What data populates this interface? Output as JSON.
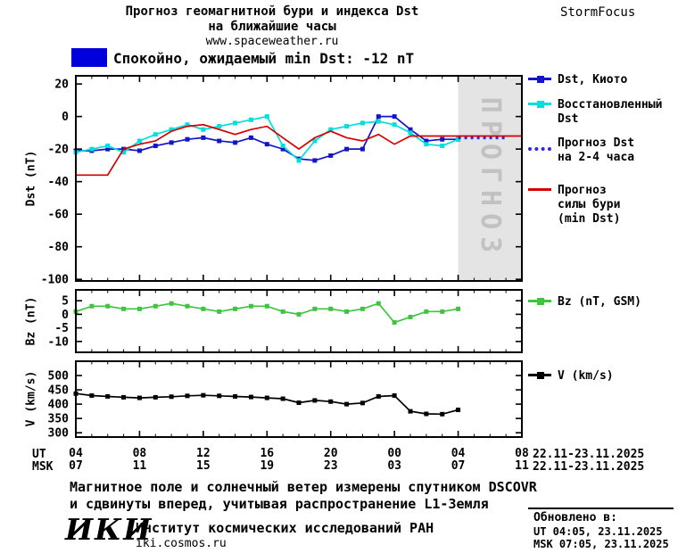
{
  "header": {
    "title_line1": "Прогноз геомагнитной бури и индекса Dst",
    "title_line2": "на ближайшие часы",
    "website": "www.spaceweather.ru",
    "brand": "StormFocus"
  },
  "status": {
    "label": "Спокойно, ожидаемый min Dst: -12 nT",
    "swatch_color": "#0000dd"
  },
  "axis": {
    "ut_row_label": "UT",
    "msk_row_label": "MSK",
    "ut_date": "22.11-23.11.2025",
    "msk_date": "22.11-23.11.2025"
  },
  "footer": {
    "note_line1": "Магнитное поле и солнечный ветер измерены спутником DSCOVR",
    "note_line2": "и сдвинуты вперед, учитывая распространение L1-Земля",
    "updated_label": "Обновлено в:",
    "updated_ut": "UT  04:05, 23.11.2025",
    "updated_msk": "MSK 07:05, 23.11.2025",
    "iki_logo": "ИКИ",
    "institute": "Институт космических исследований РАН",
    "iki_site": "iki.cosmos.ru"
  },
  "chart_data": {
    "type": "line",
    "x_hours": {
      "start": 4,
      "end": 32,
      "ticks": [
        4,
        8,
        12,
        16,
        20,
        24,
        28,
        32
      ]
    },
    "x_tick_labels_ut": [
      "04",
      "08",
      "12",
      "16",
      "20",
      "00",
      "04",
      "08"
    ],
    "x_tick_labels_msk": [
      "07",
      "11",
      "15",
      "19",
      "23",
      "03",
      "07",
      "11"
    ],
    "forecast_region": {
      "start_hour": 28,
      "end_hour": 32,
      "label": "ПРОГНОЗ",
      "fill": "#e4e4e4",
      "label_color": "#c2c2c2"
    },
    "panels": [
      {
        "name": "dst",
        "ylabel": "Dst (nT)",
        "ylim": [
          -101,
          25
        ],
        "yticks": [
          20,
          0,
          -20,
          -40,
          -60,
          -80,
          -100
        ],
        "series": [
          {
            "name": "Dst, Киото",
            "color": "#1414c8",
            "marker": "square",
            "x_start": 4,
            "values": [
              -21,
              -21,
              -20,
              -20,
              -21,
              -18,
              -16,
              -14,
              -13,
              -15,
              -16,
              -13,
              -17,
              -20,
              -26,
              -27,
              -24,
              -20,
              -20,
              0,
              0,
              -8,
              -15,
              -14,
              -14
            ]
          },
          {
            "name": "Восстановленный Dst",
            "color": "#00dede",
            "marker": "square",
            "x_start": 4,
            "values": [
              -22,
              -20,
              -18,
              -22,
              -15,
              -11,
              -8,
              -5,
              -8,
              -6,
              -4,
              -2,
              0,
              -18,
              -27,
              -15,
              -8,
              -6,
              -4,
              -3,
              -5,
              -10,
              -17,
              -18,
              -14
            ]
          },
          {
            "name": "Прогноз Dst на 2-4 часа",
            "color": "#2a2ae0",
            "style": "dotted",
            "x_start": 28,
            "values": [
              -13,
              -13,
              -13,
              -13
            ]
          },
          {
            "name": "Прогноз силы бури (min Dst)",
            "color": "#d40000",
            "x_start": 4,
            "values": [
              -36,
              -36,
              -36,
              -20,
              -17,
              -15,
              -9,
              -6,
              -5,
              -8,
              -11,
              -8,
              -6,
              -13,
              -20,
              -13,
              -9,
              -13,
              -15,
              -11,
              -17,
              -12,
              -12,
              -12,
              -12,
              -12,
              -12,
              -12,
              -12
            ]
          }
        ]
      },
      {
        "name": "bz",
        "ylabel": "Bz (nT)",
        "ylim": [
          -14,
          9
        ],
        "yticks": [
          5,
          0,
          -5,
          -10
        ],
        "series": [
          {
            "name": "Bz (nT, GSM)",
            "color": "#3ec43e",
            "marker": "square",
            "x_start": 4,
            "values": [
              1,
              3,
              3,
              2,
              2,
              3,
              4,
              3,
              2,
              1,
              2,
              3,
              3,
              1,
              0,
              2,
              2,
              1,
              2,
              4,
              -3,
              -1,
              1,
              1,
              2
            ]
          }
        ]
      },
      {
        "name": "v",
        "ylabel": "V (km/s)",
        "ylim": [
          285,
          550
        ],
        "yticks": [
          500,
          450,
          400,
          350,
          300
        ],
        "series": [
          {
            "name": "V (km/s)",
            "color": "#000000",
            "marker": "square",
            "x_start": 4,
            "values": [
              437,
              430,
              427,
              424,
              422,
              424,
              426,
              429,
              431,
              429,
              427,
              425,
              422,
              419,
              405,
              413,
              409,
              400,
              404,
              427,
              430,
              375,
              366,
              365,
              380
            ]
          }
        ]
      }
    ]
  }
}
